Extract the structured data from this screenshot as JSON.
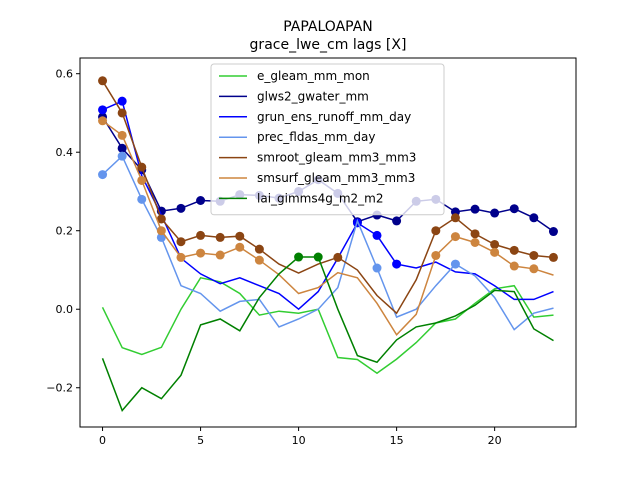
{
  "chart_data": {
    "type": "line",
    "title": "PAPALOAPAN",
    "subtitle": "grace_lwe_cm lags [X]",
    "xlabel": "",
    "ylabel": "",
    "xlim": [
      -1.15,
      24.15
    ],
    "ylim": [
      -0.3,
      0.64
    ],
    "xticks": [
      0,
      5,
      10,
      15,
      20
    ],
    "yticks": [
      -0.2,
      0.0,
      0.2,
      0.4,
      0.6
    ],
    "xtick_labels": [
      "0",
      "5",
      "10",
      "15",
      "20"
    ],
    "ytick_labels": [
      "−0.2",
      "0.0",
      "0.2",
      "0.4",
      "0.6"
    ],
    "legend_position": "top-center",
    "x": [
      0,
      1,
      2,
      3,
      4,
      5,
      6,
      7,
      8,
      9,
      10,
      11,
      12,
      13,
      14,
      15,
      16,
      17,
      18,
      19,
      20,
      21,
      22,
      23
    ],
    "series": [
      {
        "name": "e_gleam_mm_mon",
        "color": "#32cd32",
        "values": [
          0.005,
          -0.098,
          -0.115,
          -0.097,
          0.0,
          0.08,
          0.07,
          0.04,
          -0.015,
          -0.005,
          -0.01,
          0.0,
          -0.123,
          -0.128,
          -0.163,
          -0.127,
          -0.085,
          -0.035,
          -0.025,
          0.015,
          0.052,
          0.06,
          -0.02,
          -0.015
        ],
        "markers": []
      },
      {
        "name": "glws2_gwater_mm",
        "color": "#00008b",
        "values": [
          0.49,
          0.41,
          0.355,
          0.25,
          0.257,
          0.277,
          0.275,
          0.292,
          0.29,
          0.283,
          0.3,
          0.33,
          0.295,
          0.223,
          0.24,
          0.225,
          0.275,
          0.28,
          0.248,
          0.255,
          0.245,
          0.256,
          0.233,
          0.198
        ],
        "markers": [
          0,
          1,
          2,
          3,
          4,
          5,
          6,
          7,
          8,
          9,
          10,
          11,
          12,
          13,
          14,
          15,
          16,
          17,
          18,
          19,
          20,
          21,
          22,
          23
        ]
      },
      {
        "name": "grun_ens_runoff_mm_day",
        "color": "#0000ff",
        "values": [
          0.508,
          0.53,
          0.34,
          0.24,
          0.13,
          0.09,
          0.065,
          0.08,
          0.06,
          0.04,
          0.0,
          0.045,
          0.13,
          0.22,
          0.188,
          0.115,
          0.105,
          0.12,
          0.095,
          0.09,
          0.06,
          0.025,
          0.025,
          0.045
        ],
        "markers": [
          0,
          1,
          13,
          14,
          15
        ]
      },
      {
        "name": "prec_fldas_mm_day",
        "color": "#6495ed",
        "values": [
          0.343,
          0.39,
          0.28,
          0.183,
          0.06,
          0.04,
          -0.005,
          0.02,
          0.025,
          -0.045,
          -0.025,
          0.0,
          0.055,
          0.225,
          0.105,
          -0.02,
          0.0,
          0.06,
          0.115,
          0.085,
          0.03,
          -0.052,
          -0.01,
          0.003
        ],
        "markers": [
          0,
          1,
          2,
          3,
          14,
          18
        ]
      },
      {
        "name": "smroot_gleam_mm3_mm3",
        "color": "#8b4513",
        "values": [
          0.582,
          0.5,
          0.362,
          0.23,
          0.172,
          0.188,
          0.183,
          0.186,
          0.153,
          0.115,
          0.092,
          0.115,
          0.132,
          0.1,
          0.035,
          -0.01,
          0.075,
          0.2,
          0.233,
          0.192,
          0.165,
          0.15,
          0.137,
          0.132
        ],
        "markers": [
          0,
          1,
          2,
          3,
          4,
          5,
          6,
          7,
          8,
          12,
          17,
          18,
          19,
          20,
          21,
          22,
          23
        ]
      },
      {
        "name": "smsurf_gleam_mm3_mm3",
        "color": "#cd853f",
        "values": [
          0.48,
          0.443,
          0.328,
          0.2,
          0.132,
          0.143,
          0.138,
          0.158,
          0.125,
          0.088,
          0.04,
          0.055,
          0.093,
          0.08,
          0.015,
          -0.065,
          -0.013,
          0.137,
          0.185,
          0.17,
          0.145,
          0.11,
          0.103,
          0.087
        ],
        "markers": [
          0,
          1,
          2,
          3,
          4,
          5,
          6,
          7,
          8,
          17,
          18,
          19,
          20,
          21,
          22
        ]
      },
      {
        "name": "lai_gimms4g_m2_m2",
        "color": "#008000",
        "values": [
          -0.125,
          -0.258,
          -0.2,
          -0.228,
          -0.168,
          -0.04,
          -0.025,
          -0.055,
          0.03,
          0.09,
          0.133,
          0.133,
          0.0,
          -0.118,
          -0.135,
          -0.078,
          -0.045,
          -0.035,
          -0.017,
          0.01,
          0.048,
          0.045,
          -0.05,
          -0.08
        ],
        "markers": [
          10,
          11
        ]
      }
    ]
  }
}
